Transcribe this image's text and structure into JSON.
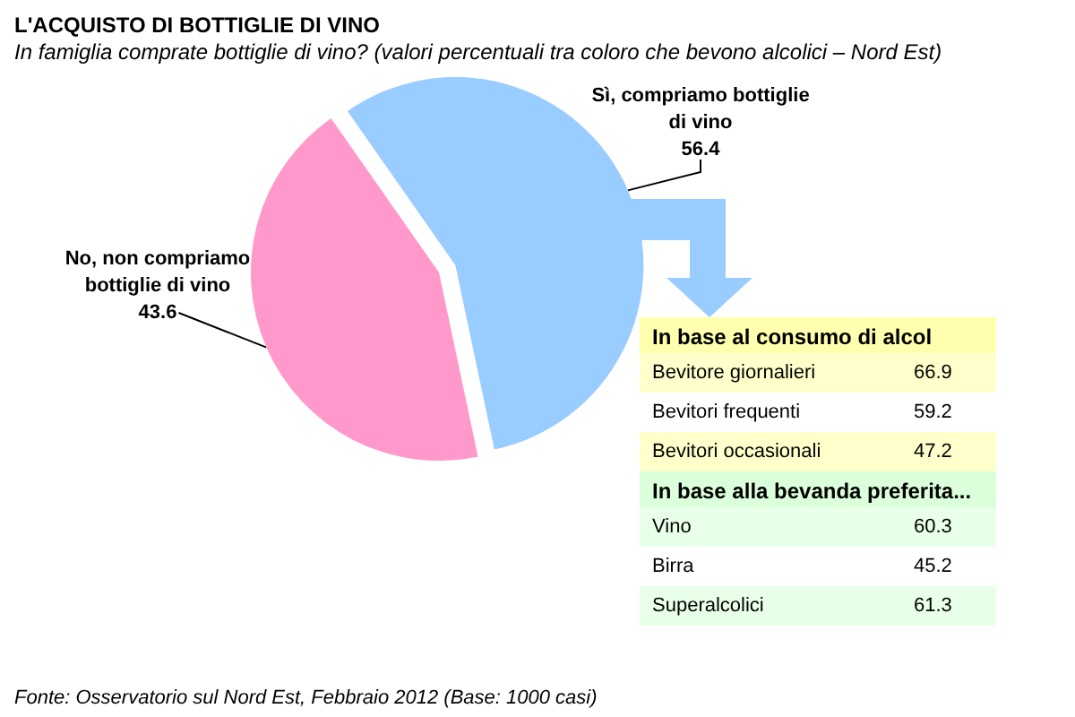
{
  "chart_data": [
    {
      "type": "pie",
      "title": "L'ACQUISTO DI BOTTIGLIE DI VINO",
      "subtitle": "In famiglia comprate bottiglie di vino? (valori percentuali tra coloro che bevono alcolici – Nord Est)",
      "categories": [
        "Sì, compriamo bottiglie di vino",
        "No, non compriamo bottiglie di vino"
      ],
      "values": [
        56.4,
        43.6
      ],
      "colors": [
        "#99ccff",
        "#ff99cc"
      ],
      "data_labels": true,
      "annotations": [
        "Fonte: Osservatorio sul Nord Est, Febbraio 2012 (Base: 1000 casi)"
      ]
    },
    {
      "type": "other",
      "title": "In base al consumo di alcol",
      "categories": [
        "Bevitore giornalieri",
        "Bevitori frequenti",
        "Bevitori occasionali"
      ],
      "values": [
        66.9,
        59.2,
        47.2
      ],
      "colors": [
        "#ffffcc",
        "#ffffff",
        "#ffffcc"
      ],
      "data_labels": true
    },
    {
      "type": "other",
      "title": "In base alla bevanda preferita...",
      "categories": [
        "Vino",
        "Birra",
        "Superalcolici"
      ],
      "values": [
        60.3,
        45.2,
        61.3
      ],
      "colors": [
        "#e8ffe8",
        "#ffffff",
        "#e8ffe8"
      ],
      "data_labels": true
    }
  ]
}
